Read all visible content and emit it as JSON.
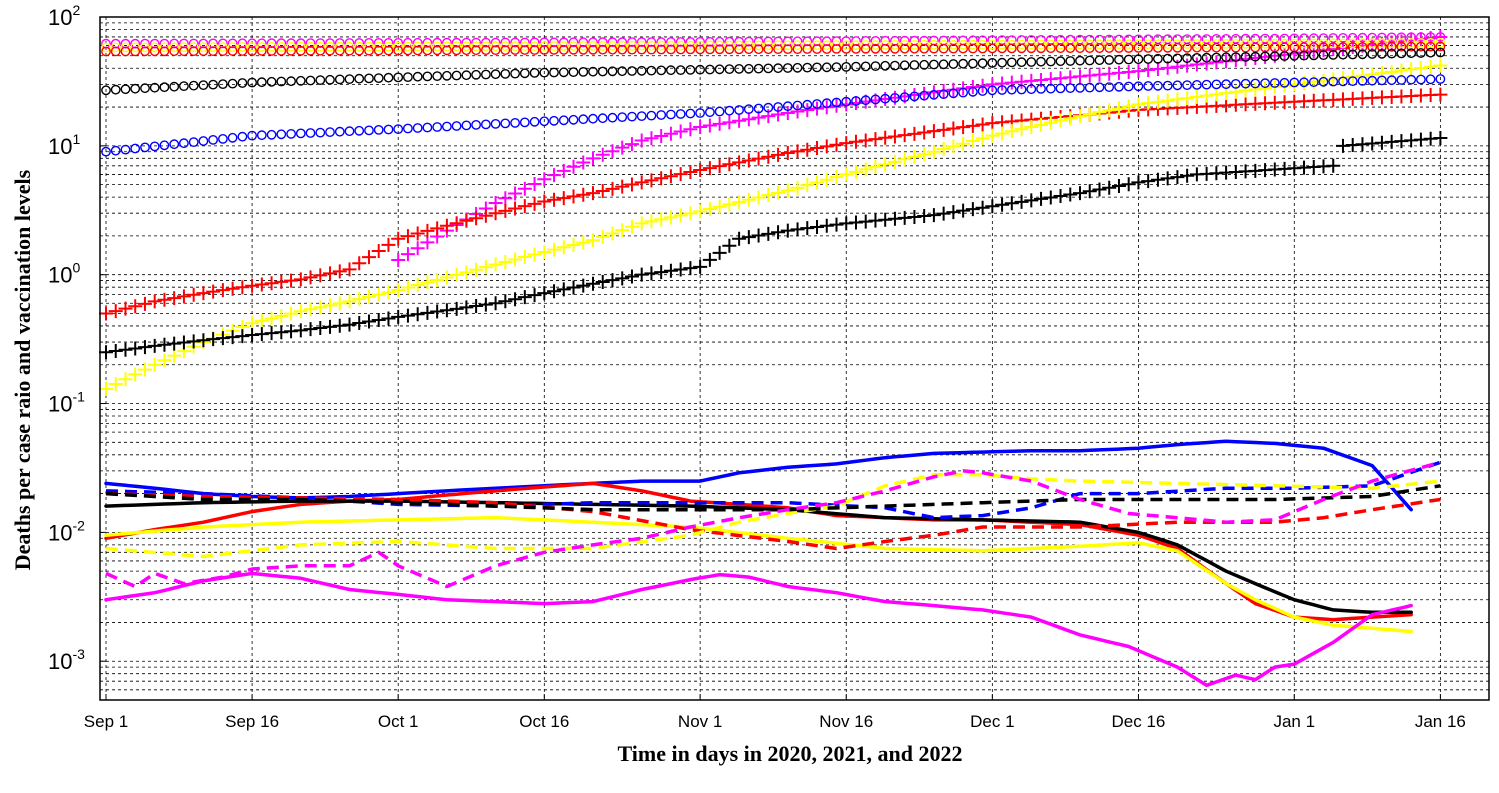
{
  "chart_data": {
    "type": "line",
    "title": "",
    "xlabel": "Time in days in 2020, 2021, and 2022",
    "ylabel": "Deaths per case raio and vaccination levels",
    "yscale": "log",
    "ylim": [
      0.0005,
      100
    ],
    "xlim": [
      0,
      137
    ],
    "grid": true,
    "x_ticks": [
      {
        "label": "Sep 1",
        "day": 0
      },
      {
        "label": "Sep 16",
        "day": 15
      },
      {
        "label": "Oct 1",
        "day": 30
      },
      {
        "label": "Oct 16",
        "day": 45
      },
      {
        "label": "Nov 1",
        "day": 61
      },
      {
        "label": "Nov 16",
        "day": 76
      },
      {
        "label": "Dec 1",
        "day": 91
      },
      {
        "label": "Dec 16",
        "day": 106
      },
      {
        "label": "Jan 1",
        "day": 122
      },
      {
        "label": "Jan 16",
        "day": 137
      }
    ],
    "y_ticks": [
      {
        "base": "10",
        "exp": "-3",
        "value": 0.001
      },
      {
        "base": "10",
        "exp": "-2",
        "value": 0.01
      },
      {
        "base": "10",
        "exp": "-1",
        "value": 0.1
      },
      {
        "base": "10",
        "exp": "0",
        "value": 1
      },
      {
        "base": "10",
        "exp": "1",
        "value": 10
      },
      {
        "base": "10",
        "exp": "2",
        "value": 100
      }
    ],
    "series": [
      {
        "style": "marker-circle",
        "color": "#ff00ff",
        "x": [
          0,
          30,
          60,
          90,
          120,
          137
        ],
        "values": [
          62,
          63,
          64,
          66,
          68,
          70
        ]
      },
      {
        "style": "marker-circle",
        "color": "#ffff00",
        "x": [
          0,
          30,
          60,
          90,
          120,
          137
        ],
        "values": [
          58,
          59,
          60,
          61,
          62,
          63
        ]
      },
      {
        "style": "marker-circle",
        "color": "#ff0000",
        "x": [
          0,
          30,
          60,
          90,
          120,
          137
        ],
        "values": [
          54,
          55,
          56,
          57,
          58,
          59
        ]
      },
      {
        "style": "marker-circle",
        "color": "#000000",
        "x": [
          0,
          15,
          30,
          45,
          61,
          76,
          91,
          106,
          122,
          137
        ],
        "values": [
          27,
          31,
          34,
          37,
          39,
          41,
          44,
          47,
          50,
          53
        ]
      },
      {
        "style": "marker-circle",
        "color": "#0000ff",
        "x": [
          0,
          15,
          30,
          45,
          61,
          76,
          91,
          106,
          122,
          137
        ],
        "values": [
          9,
          12,
          13.5,
          15.5,
          18,
          22,
          27,
          29,
          31,
          33
        ]
      },
      {
        "style": "marker-plus",
        "color": "#ff00ff",
        "x": [
          30,
          35,
          40,
          45,
          50,
          55,
          61,
          70,
          76,
          85,
          91,
          106,
          122,
          137
        ],
        "values": [
          1.3,
          2.2,
          3.6,
          5.5,
          8,
          11,
          14,
          18,
          21,
          26,
          30,
          38,
          52,
          70
        ]
      },
      {
        "style": "marker-plus",
        "color": "#ff0000",
        "x": [
          0,
          5,
          10,
          15,
          20,
          25,
          30,
          35,
          40,
          45,
          50,
          55,
          61,
          70,
          76,
          85,
          91,
          106,
          122,
          137
        ],
        "values": [
          0.5,
          0.62,
          0.72,
          0.82,
          0.92,
          1.1,
          1.9,
          2.4,
          3.0,
          3.7,
          4.3,
          5.2,
          6.5,
          8.8,
          10.5,
          13,
          15,
          19,
          22,
          25
        ]
      },
      {
        "style": "marker-plus",
        "color": "#ffff00",
        "x": [
          0,
          5,
          10,
          15,
          20,
          25,
          30,
          35,
          40,
          45,
          50,
          55,
          61,
          70,
          76,
          85,
          91,
          100,
          106,
          122,
          137
        ],
        "values": [
          0.13,
          0.2,
          0.3,
          0.42,
          0.52,
          0.62,
          0.76,
          0.95,
          1.2,
          1.5,
          1.85,
          2.5,
          3.1,
          4.5,
          6.0,
          9,
          12,
          17,
          21,
          30,
          42
        ]
      },
      {
        "style": "marker-plus",
        "color": "#000000",
        "x": [
          0,
          5,
          10,
          15,
          20,
          25,
          30,
          35,
          40,
          45,
          50,
          55,
          61,
          65,
          70,
          76,
          85,
          91,
          100,
          106,
          112,
          118,
          122,
          126,
          127,
          137
        ],
        "values": [
          0.25,
          0.28,
          0.31,
          0.34,
          0.37,
          0.41,
          0.47,
          0.53,
          0.6,
          0.72,
          0.85,
          1.0,
          1.15,
          1.9,
          2.2,
          2.5,
          2.9,
          3.4,
          4.3,
          5.2,
          6.0,
          6.4,
          6.7,
          7.0,
          10,
          11.5
        ]
      },
      {
        "style": "solid",
        "color": "#0000ff",
        "x": [
          0,
          5,
          10,
          15,
          20,
          25,
          30,
          35,
          40,
          45,
          50,
          55,
          61,
          65,
          70,
          75,
          80,
          85,
          90,
          95,
          100,
          106,
          110,
          115,
          120,
          125,
          130,
          134
        ],
        "values": [
          0.024,
          0.022,
          0.02,
          0.019,
          0.0185,
          0.019,
          0.02,
          0.021,
          0.022,
          0.023,
          0.024,
          0.025,
          0.025,
          0.029,
          0.032,
          0.034,
          0.038,
          0.041,
          0.042,
          0.043,
          0.043,
          0.045,
          0.048,
          0.051,
          0.049,
          0.045,
          0.033,
          0.015
        ]
      },
      {
        "style": "solid",
        "color": "#ff0000",
        "x": [
          0,
          5,
          10,
          15,
          20,
          25,
          30,
          35,
          40,
          45,
          50,
          55,
          60,
          65,
          70,
          75,
          80,
          85,
          90,
          95,
          100,
          106,
          110,
          115,
          118,
          122,
          126,
          130,
          134
        ],
        "values": [
          0.009,
          0.0105,
          0.012,
          0.0145,
          0.0165,
          0.0175,
          0.018,
          0.0195,
          0.021,
          0.0225,
          0.024,
          0.021,
          0.0175,
          0.0165,
          0.0155,
          0.0135,
          0.013,
          0.0125,
          0.0125,
          0.012,
          0.0115,
          0.0095,
          0.0075,
          0.004,
          0.0028,
          0.0022,
          0.0021,
          0.0022,
          0.0023
        ]
      },
      {
        "style": "solid",
        "color": "#ffff00",
        "x": [
          0,
          10,
          20,
          30,
          40,
          50,
          60,
          70,
          80,
          90,
          100,
          106,
          110,
          115,
          118,
          122,
          126,
          130,
          134
        ],
        "values": [
          0.0095,
          0.011,
          0.012,
          0.0125,
          0.013,
          0.012,
          0.011,
          0.009,
          0.0075,
          0.0072,
          0.0078,
          0.0083,
          0.0072,
          0.004,
          0.003,
          0.0022,
          0.0019,
          0.0018,
          0.0017
        ]
      },
      {
        "style": "solid",
        "color": "#000000",
        "x": [
          0,
          10,
          20,
          30,
          40,
          50,
          60,
          70,
          80,
          90,
          100,
          106,
          110,
          115,
          118,
          122,
          126,
          130,
          134
        ],
        "values": [
          0.016,
          0.017,
          0.0175,
          0.0175,
          0.017,
          0.0165,
          0.016,
          0.015,
          0.013,
          0.0125,
          0.012,
          0.01,
          0.008,
          0.005,
          0.004,
          0.003,
          0.0025,
          0.0024,
          0.0024
        ]
      },
      {
        "style": "solid",
        "color": "#ff00ff",
        "x": [
          0,
          5,
          10,
          15,
          20,
          25,
          30,
          35,
          40,
          45,
          50,
          55,
          60,
          63,
          66,
          70,
          75,
          80,
          85,
          90,
          95,
          100,
          105,
          110,
          113,
          116,
          118,
          120,
          122,
          126,
          130,
          134
        ],
        "values": [
          0.003,
          0.0034,
          0.0042,
          0.0048,
          0.0044,
          0.0036,
          0.0033,
          0.003,
          0.0029,
          0.0028,
          0.0029,
          0.0036,
          0.0043,
          0.0047,
          0.0045,
          0.0038,
          0.0034,
          0.0029,
          0.0027,
          0.0025,
          0.0022,
          0.0016,
          0.0013,
          0.0009,
          0.00065,
          0.00078,
          0.00072,
          0.0009,
          0.00095,
          0.0014,
          0.0023,
          0.0027
        ]
      },
      {
        "style": "dashed",
        "color": "#0000ff",
        "x": [
          0,
          10,
          20,
          30,
          40,
          50,
          60,
          70,
          80,
          85,
          90,
          95,
          100,
          106,
          115,
          122,
          130,
          137
        ],
        "values": [
          0.021,
          0.02,
          0.0185,
          0.0165,
          0.016,
          0.017,
          0.017,
          0.017,
          0.0155,
          0.013,
          0.0135,
          0.0155,
          0.02,
          0.02,
          0.022,
          0.022,
          0.023,
          0.035
        ]
      },
      {
        "style": "dashed",
        "color": "#ff0000",
        "x": [
          0,
          10,
          20,
          30,
          40,
          50,
          60,
          70,
          75,
          80,
          85,
          90,
          100,
          110,
          115,
          120,
          125,
          130,
          137
        ],
        "values": [
          0.02,
          0.019,
          0.0185,
          0.018,
          0.017,
          0.0145,
          0.0105,
          0.0085,
          0.0075,
          0.0085,
          0.0095,
          0.011,
          0.011,
          0.012,
          0.012,
          0.012,
          0.013,
          0.015,
          0.018
        ]
      },
      {
        "style": "dashed",
        "color": "#ffff00",
        "x": [
          0,
          10,
          20,
          30,
          40,
          50,
          60,
          65,
          70,
          75,
          80,
          85,
          90,
          95,
          100,
          110,
          120,
          130,
          137
        ],
        "values": [
          0.0075,
          0.0065,
          0.008,
          0.0085,
          0.0075,
          0.0075,
          0.0095,
          0.012,
          0.014,
          0.016,
          0.023,
          0.028,
          0.028,
          0.026,
          0.025,
          0.024,
          0.023,
          0.022,
          0.025
        ]
      },
      {
        "style": "dashed",
        "color": "#000000",
        "x": [
          0,
          10,
          20,
          30,
          40,
          50,
          60,
          70,
          80,
          90,
          100,
          110,
          120,
          130,
          137
        ],
        "values": [
          0.02,
          0.018,
          0.018,
          0.017,
          0.016,
          0.015,
          0.015,
          0.015,
          0.016,
          0.017,
          0.018,
          0.018,
          0.018,
          0.019,
          0.023
        ]
      },
      {
        "style": "dashed",
        "color": "#ff00ff",
        "x": [
          0,
          3,
          5,
          8,
          12,
          15,
          20,
          25,
          28,
          30,
          35,
          40,
          45,
          50,
          55,
          60,
          65,
          70,
          75,
          80,
          85,
          88,
          90,
          95,
          100,
          105,
          110,
          115,
          120,
          125,
          130,
          137
        ],
        "values": [
          0.0048,
          0.0038,
          0.0048,
          0.004,
          0.0045,
          0.0052,
          0.0055,
          0.0055,
          0.007,
          0.0055,
          0.0038,
          0.0055,
          0.007,
          0.008,
          0.009,
          0.011,
          0.013,
          0.015,
          0.017,
          0.021,
          0.027,
          0.03,
          0.029,
          0.025,
          0.018,
          0.014,
          0.013,
          0.012,
          0.0125,
          0.018,
          0.025,
          0.035
        ]
      }
    ]
  }
}
